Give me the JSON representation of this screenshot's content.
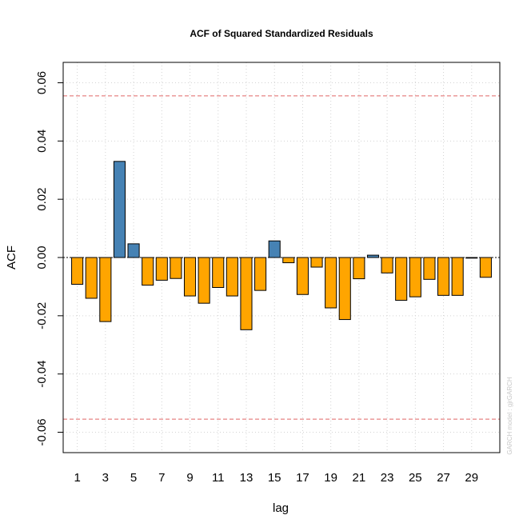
{
  "chart_data": {
    "type": "bar",
    "title": "ACF of Squared Standardized Residuals",
    "xlabel": "lag",
    "ylabel": "ACF",
    "watermark": "GARCH model : gjrGARCH",
    "xlim": [
      0,
      31
    ],
    "ylim": [
      -0.067,
      0.067
    ],
    "x_ticks": [
      1,
      3,
      5,
      7,
      9,
      11,
      13,
      15,
      17,
      19,
      21,
      23,
      25,
      27,
      29
    ],
    "y_ticks": [
      -0.06,
      -0.04,
      -0.02,
      0.0,
      0.02,
      0.04,
      0.06
    ],
    "y_tick_labels": [
      "-0.06",
      "-0.04",
      "-0.02",
      "0.00",
      "0.02",
      "0.04",
      "0.06"
    ],
    "grid": true,
    "confidence_bound": 0.0555,
    "lags": [
      1,
      2,
      3,
      4,
      5,
      6,
      7,
      8,
      9,
      10,
      11,
      12,
      13,
      14,
      15,
      16,
      17,
      18,
      19,
      20,
      21,
      22,
      23,
      24,
      25,
      26,
      27,
      28,
      29,
      30
    ],
    "values": [
      -0.0092,
      -0.014,
      -0.022,
      0.033,
      0.0047,
      -0.0095,
      -0.0078,
      -0.0072,
      -0.0132,
      -0.0157,
      -0.0103,
      -0.0132,
      -0.0248,
      -0.0113,
      0.0057,
      -0.0018,
      -0.0127,
      -0.0033,
      -0.0173,
      -0.0213,
      -0.0073,
      0.0008,
      -0.0053,
      -0.0147,
      -0.0135,
      -0.0075,
      -0.013,
      -0.013,
      -0.0002,
      -0.0068
    ],
    "colors": {
      "positive": "#4682b4",
      "negative": "#ffa500",
      "bound": "#e06666",
      "grid": "#d3d3d3"
    }
  }
}
